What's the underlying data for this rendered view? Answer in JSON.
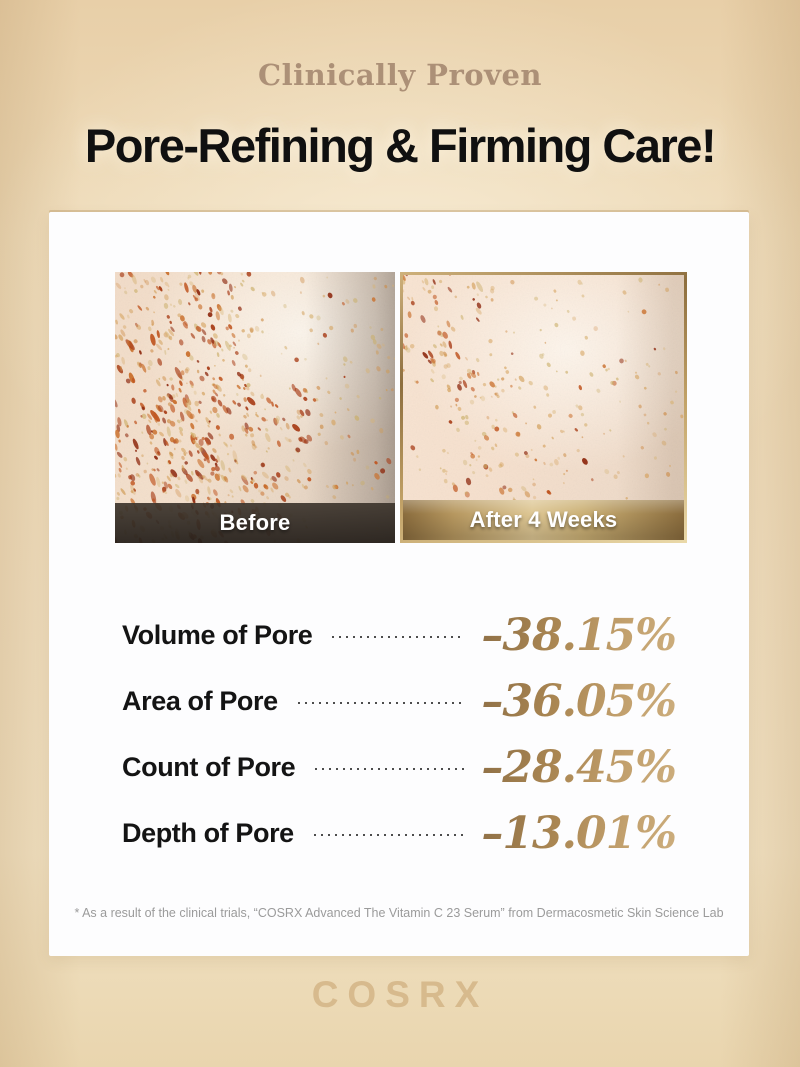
{
  "header": {
    "eyebrow": "Clinically Proven",
    "title": "Pore-Refining & Firming Care!"
  },
  "comparison": {
    "before_label": "Before",
    "after_label": "After 4 Weeks"
  },
  "stats": {
    "rows": [
      {
        "label": "Volume of Pore",
        "value": "–38.15%"
      },
      {
        "label": "Area of Pore",
        "value": "–36.05%"
      },
      {
        "label": "Count of Pore",
        "value": "–28.45%"
      },
      {
        "label": "Depth of Pore",
        "value": "–13.01%"
      }
    ]
  },
  "footnote": "* As a result of the clinical trials, “COSRX Advanced The Vitamin C 23 Serum” from Dermacosmetic Skin Science Lab",
  "brand": {
    "logo": "COSRX"
  },
  "colors": {
    "accent_gold": "#b8955e",
    "gold_bar": "#c2a267",
    "dark_bar": "#2a241f",
    "title_black": "#101010",
    "background_tan": "#eedbb9",
    "card_white": "#fdfdfe",
    "eyebrow_taupe": "#ac9077",
    "footnote_gray": "#9b9b9b",
    "logo_tan": "#d7ba8d"
  }
}
